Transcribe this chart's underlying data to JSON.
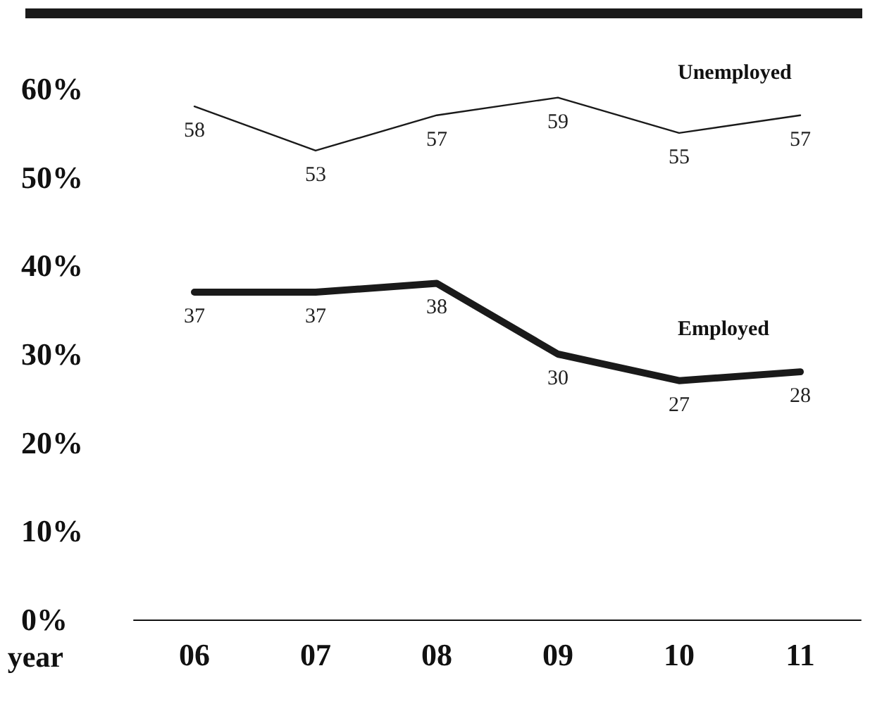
{
  "chart_data": {
    "type": "line",
    "xlabel": "year",
    "categories": [
      "06",
      "07",
      "08",
      "09",
      "10",
      "11"
    ],
    "series": [
      {
        "name": "Unemployed",
        "color": "#1a1a1a",
        "values": [
          58,
          53,
          57,
          59,
          55,
          57
        ]
      },
      {
        "name": "Employed",
        "color": "#1a1a1a",
        "values": [
          37,
          37,
          38,
          30,
          27,
          28
        ]
      }
    ],
    "ylim": [
      0,
      60
    ],
    "yticks": [
      {
        "value": 0,
        "label": "0%"
      },
      {
        "value": 10,
        "label": "10%"
      },
      {
        "value": 20,
        "label": "20%"
      },
      {
        "value": 30,
        "label": "30%"
      },
      {
        "value": 40,
        "label": "40%"
      },
      {
        "value": 50,
        "label": "50%"
      },
      {
        "value": 60,
        "label": "60%"
      }
    ],
    "grid": false,
    "legend": false,
    "data_labels": true,
    "marker": "none",
    "line_style": "solid"
  }
}
